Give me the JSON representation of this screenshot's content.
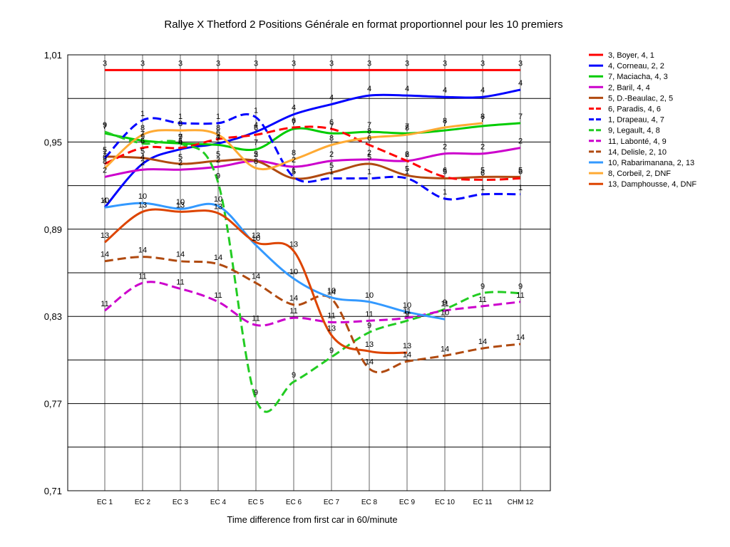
{
  "chart_data": {
    "type": "line",
    "title": "Rallye X Thetford 2  Positions Générale en format proportionnel pour les 10 premiers",
    "xlabel": "Time difference from first car in 60/minute",
    "ylabel": "",
    "categories": [
      "EC 1",
      "EC 2",
      "EC 3",
      "EC 4",
      "EC 5",
      "EC 6",
      "EC 7",
      "EC 8",
      "EC 9",
      "EC 10",
      "EC 11",
      "CHM 12"
    ],
    "y_ticks": [
      "1,01",
      "0,95",
      "0,89",
      "0,83",
      "0,77",
      "0,71"
    ],
    "ylim": [
      0.71,
      1.01
    ],
    "grid": "horizontal",
    "legend_position": "right",
    "series": [
      {
        "name": "3, Boyer, 4, 1",
        "color": "#ff0000",
        "dash": false,
        "label": "3",
        "values": [
          0.9995,
          0.9995,
          0.9995,
          0.9995,
          0.9995,
          0.9995,
          0.9995,
          0.9995,
          0.9995,
          0.9995,
          0.9995,
          0.9995
        ]
      },
      {
        "name": "4, Corneau, 2, 2",
        "color": "#0000ff",
        "dash": false,
        "label": "4",
        "values": [
          0.905,
          0.935,
          0.945,
          0.949,
          0.957,
          0.969,
          0.976,
          0.982,
          0.982,
          0.981,
          0.981,
          0.986
        ]
      },
      {
        "name": "7, Maciacha, 4, 3",
        "color": "#00cc00",
        "dash": false,
        "label": "7",
        "values": [
          0.956,
          0.951,
          0.949,
          0.948,
          0.945,
          0.959,
          0.956,
          0.957,
          0.956,
          0.958,
          0.961,
          0.963
        ]
      },
      {
        "name": "2, Baril, 4, 4",
        "color": "#cc00cc",
        "dash": false,
        "label": "2",
        "values": [
          0.926,
          0.931,
          0.931,
          0.933,
          0.937,
          0.933,
          0.937,
          0.938,
          0.937,
          0.942,
          0.942,
          0.946
        ]
      },
      {
        "name": "5, D.-Beaulac, 2, 5",
        "color": "#b04a10",
        "dash": false,
        "label": "5",
        "values": [
          0.94,
          0.939,
          0.935,
          0.937,
          0.937,
          0.925,
          0.929,
          0.935,
          0.927,
          0.925,
          0.926,
          0.926
        ]
      },
      {
        "name": "6, Paradis, 4, 6",
        "color": "#ff0000",
        "dash": true,
        "label": "6",
        "values": [
          0.935,
          0.946,
          0.946,
          0.952,
          0.955,
          0.96,
          0.959,
          0.948,
          0.937,
          0.926,
          0.924,
          0.925
        ]
      },
      {
        "name": "1, Drapeau, 4, 7",
        "color": "#0000ff",
        "dash": true,
        "label": "1",
        "values": [
          0.939,
          0.965,
          0.963,
          0.963,
          0.967,
          0.926,
          0.925,
          0.925,
          0.925,
          0.911,
          0.914,
          0.914
        ]
      },
      {
        "name": "9, Legault, 4, 8",
        "color": "#22cc22",
        "dash": true,
        "label": "9",
        "values": [
          0.957,
          0.949,
          0.949,
          0.922,
          0.773,
          0.785,
          0.802,
          0.819,
          0.827,
          0.835,
          0.846,
          0.846
        ]
      },
      {
        "name": "11, Labonté, 4, 9",
        "color": "#cc00cc",
        "dash": true,
        "label": "11",
        "values": [
          0.834,
          0.853,
          0.849,
          0.84,
          0.824,
          0.829,
          0.826,
          0.827,
          0.829,
          0.834,
          0.837,
          0.84
        ]
      },
      {
        "name": "14, Delisle, 2, 10",
        "color": "#b04a10",
        "dash": true,
        "label": "14",
        "values": [
          0.868,
          0.871,
          0.868,
          0.866,
          0.853,
          0.838,
          0.842,
          0.794,
          0.799,
          0.803,
          0.808,
          0.811
        ]
      },
      {
        "name": "10, Rabarimanana, 2, 13",
        "color": "#3399ff",
        "dash": false,
        "label": "10",
        "values": [
          0.905,
          0.908,
          0.904,
          0.906,
          0.879,
          0.856,
          0.843,
          0.84,
          0.833,
          0.828,
          null,
          null
        ]
      },
      {
        "name": "8, Corbeil, 2, DNF",
        "color": "#ffaa33",
        "dash": false,
        "label": "8",
        "values": [
          0.932,
          0.955,
          0.958,
          0.955,
          0.932,
          0.938,
          0.948,
          0.953,
          0.955,
          0.96,
          0.963,
          null
        ]
      },
      {
        "name": "13, Damphousse, 4, DNF",
        "color": "#dd4400",
        "dash": false,
        "label": "13",
        "values": [
          0.881,
          0.902,
          0.902,
          0.901,
          0.881,
          0.875,
          0.817,
          0.806,
          0.805,
          null,
          null,
          null
        ]
      }
    ]
  }
}
